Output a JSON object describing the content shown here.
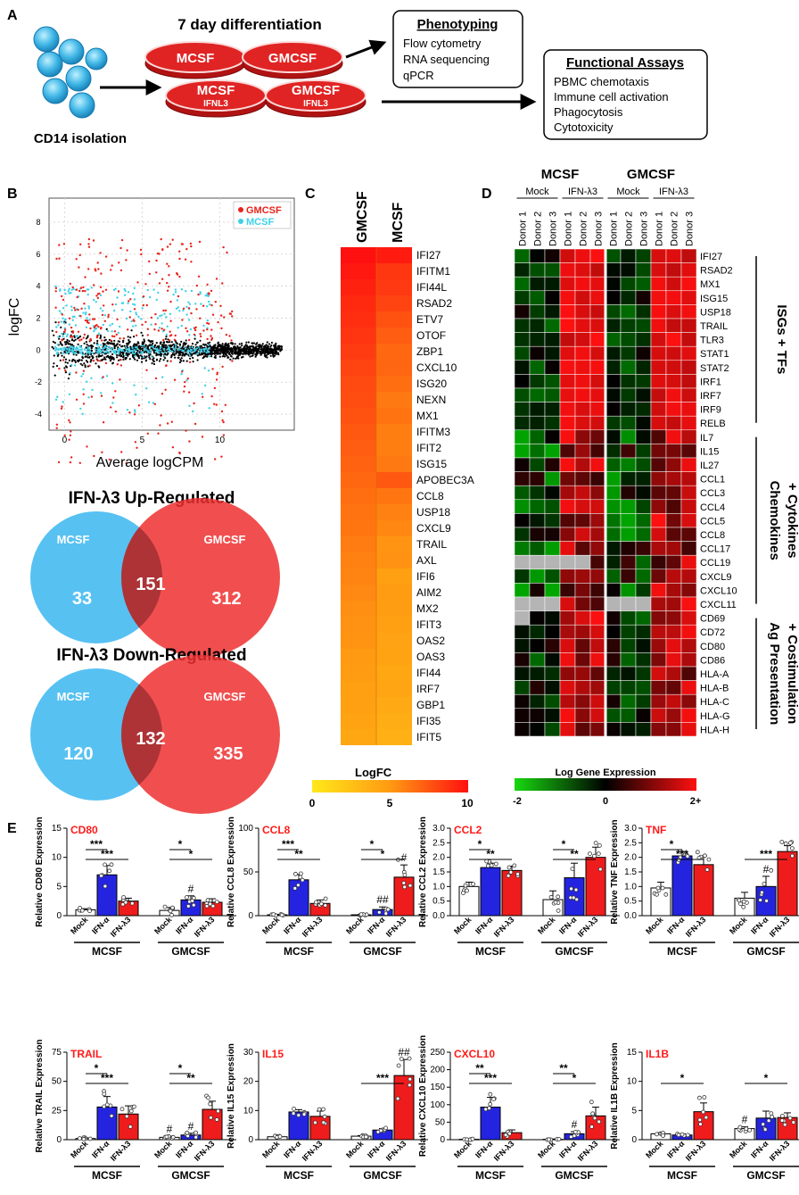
{
  "panels": {
    "A": {
      "letter": "A",
      "cells_label": "CD14 isolation",
      "differentiation_title": "7 day differentiation",
      "dishes": [
        {
          "label": "MCSF",
          "sub": ""
        },
        {
          "label": "GMCSF",
          "sub": ""
        },
        {
          "label": "MCSF",
          "sub": "IFNL3"
        },
        {
          "label": "GMCSF",
          "sub": "IFNL3"
        }
      ],
      "phenotyping": {
        "title": "Phenotyping",
        "items": [
          "Flow cytometry",
          "RNA sequencing",
          "qPCR"
        ]
      },
      "functional": {
        "title": "Functional Assays",
        "items": [
          "PBMC chemotaxis",
          "Immune cell activation",
          "Phagocytosis",
          "Cytotoxicity"
        ]
      }
    },
    "B": {
      "letter": "B",
      "xlabel": "Average logCPM",
      "ylabel": "logFC",
      "xticks": [
        "0",
        "5",
        "10"
      ],
      "yticks": [
        "8",
        "6",
        "4",
        "2",
        "0",
        "-2",
        "-4"
      ],
      "legend": [
        {
          "label": "GMCSF",
          "color": "#e8231b"
        },
        {
          "label": "MCSF",
          "color": "#3fd0e8"
        }
      ],
      "venn_up": {
        "title": "IFN-λ3 Up-Regulated",
        "left_label": "MCSF",
        "right_label": "GMCSF",
        "left_only": "33",
        "overlap": "151",
        "right_only": "312"
      },
      "venn_down": {
        "title": "IFN-λ3 Down-Regulated",
        "left_label": "MCSF",
        "right_label": "GMCSF",
        "left_only": "120",
        "overlap": "132",
        "right_only": "335"
      }
    },
    "C": {
      "letter": "C",
      "columns": [
        "GMCSF",
        "MCSF"
      ],
      "genes": [
        "IFI27",
        "IFITM1",
        "IFI44L",
        "RSAD2",
        "ETV7",
        "OTOF",
        "ZBP1",
        "CXCL10",
        "ISG20",
        "NEXN",
        "MX1",
        "IFITM3",
        "IFIT2",
        "ISG15",
        "APOBEC3A",
        "CCL8",
        "USP18",
        "CXCL9",
        "TRAIL",
        "AXL",
        "IFI6",
        "AIM2",
        "MX2",
        "IFIT3",
        "OAS2",
        "OAS3",
        "IFI44",
        "IRF7",
        "GBP1",
        "IFI35",
        "IFIT5"
      ],
      "gm_values": [
        10,
        9.7,
        9.4,
        9.1,
        8.9,
        8.7,
        8.4,
        8.1,
        7.9,
        7.8,
        7.6,
        7.4,
        7.2,
        7.0,
        6.8,
        6.6,
        6.4,
        6.3,
        6.1,
        5.9,
        5.8,
        5.6,
        5.4,
        5.3,
        5.2,
        5.0,
        4.9,
        4.7,
        4.6,
        4.4,
        4.2
      ],
      "m_values": [
        9.6,
        8.6,
        8.5,
        8.1,
        7.6,
        7.2,
        6.8,
        6.9,
        6.6,
        6.2,
        6.4,
        6.0,
        6.0,
        6.2,
        7.4,
        6.3,
        5.9,
        5.7,
        5.2,
        5.3,
        4.7,
        4.9,
        4.8,
        4.6,
        4.5,
        4.4,
        4.2,
        4.3,
        4.0,
        3.8,
        3.6
      ],
      "scale_title": "LogFC",
      "scale_ticks": [
        "0",
        "5",
        "10"
      ]
    },
    "D": {
      "letter": "D",
      "group_headers": [
        "MCSF",
        "GMCSF"
      ],
      "subgroups": [
        "Mock",
        "IFN-λ3",
        "Mock",
        "IFN-λ3"
      ],
      "donors": [
        "Donor 1",
        "Donor 2",
        "Donor 3",
        "Donor 1",
        "Donor 2",
        "Donor 3",
        "Donor 1",
        "Donor 2",
        "Donor 3",
        "Donor 1",
        "Donor 2",
        "Donor 3"
      ],
      "genes": [
        "IFI27",
        "RSAD2",
        "MX1",
        "ISG15",
        "USP18",
        "TRAIL",
        "TLR3",
        "STAT1",
        "STAT2",
        "IRF1",
        "IRF7",
        "IRF9",
        "RELB",
        "IL7",
        "IL15",
        "IL27",
        "CCL1",
        "CCL3",
        "CCL4",
        "CCL5",
        "CCL8",
        "CCL17",
        "CCL19",
        "CXCL9",
        "CXCL10",
        "CXCL11",
        "CD69",
        "CD72",
        "CD80",
        "CD86",
        "HLA-A",
        "HLA-B",
        "HLA-C",
        "HLA-G",
        "HLA-H"
      ],
      "categories": [
        "ISGs + TFs",
        "Chemokines + Cytokines",
        "Ag Presentation + Costimulation"
      ],
      "category_lines": [
        [
          "ISGs + TFs"
        ],
        [
          "Chemokines",
          "+ Cytokines"
        ],
        [
          "Ag Presentation",
          "+ Costimulation"
        ]
      ],
      "scale_title": "Log Gene Expression",
      "scale_ticks": [
        "-2",
        "0",
        "2+"
      ]
    },
    "E": {
      "letter": "E",
      "groups": [
        "MCSF",
        "GMCSF"
      ],
      "colors": {
        "mock": "#ffffff",
        "ifna": "#2424e0",
        "ifnl": "#ee1c1c"
      },
      "plots": [
        {
          "title": "CD80",
          "ylabel": "Relative CD80 Expression",
          "ymax": 15,
          "yticks": [
            "0",
            "5",
            "10",
            "15"
          ],
          "bars": [
            {
              "x": "Mock",
              "v": 1.0
            },
            {
              "x": "IFN-α",
              "v": 7.0
            },
            {
              "x": "IFN-λ3",
              "v": 2.5
            },
            {
              "x": "Mock",
              "v": 0.9
            },
            {
              "x": "IFN-α",
              "v": 2.7
            },
            {
              "x": "IFN-λ3",
              "v": 2.3
            }
          ],
          "errors": [
            0.2,
            1.6,
            0.5,
            0.5,
            0.7,
            0.6
          ],
          "sig": [
            {
              "a": 0,
              "b": 1,
              "label": "***",
              "lv": 0
            },
            {
              "a": 0,
              "b": 2,
              "label": "***",
              "lv": 1
            },
            {
              "a": 3,
              "b": 4,
              "label": "*",
              "lv": 0
            },
            {
              "a": 3,
              "b": 5,
              "label": "*",
              "lv": 1
            }
          ],
          "marks": [
            {
              "bar": 4,
              "label": "#"
            }
          ]
        },
        {
          "title": "CCL8",
          "ylabel": "Relative CCL8 Expression",
          "ymax": 100,
          "yticks": [
            "0",
            "50",
            "100"
          ],
          "bars": [
            {
              "x": "Mock",
              "v": 1.0
            },
            {
              "x": "IFN-α",
              "v": 41.0
            },
            {
              "x": "IFN-λ3",
              "v": 14.0
            },
            {
              "x": "Mock",
              "v": 1.0
            },
            {
              "x": "IFN-α",
              "v": 7.0
            },
            {
              "x": "IFN-λ3",
              "v": 44.0
            }
          ],
          "errors": [
            0.5,
            6,
            4,
            0.5,
            3,
            14
          ],
          "sig": [
            {
              "a": 0,
              "b": 1,
              "label": "***",
              "lv": 0
            },
            {
              "a": 0,
              "b": 2,
              "label": "**",
              "lv": 1
            },
            {
              "a": 3,
              "b": 4,
              "label": "*",
              "lv": 0
            },
            {
              "a": 3,
              "b": 5,
              "label": "*",
              "lv": 1
            }
          ],
          "marks": [
            {
              "bar": 4,
              "label": "##"
            },
            {
              "bar": 5,
              "label": "#"
            }
          ]
        },
        {
          "title": "CCL2",
          "ylabel": "Relative CCL2 Expression",
          "ymax": 3,
          "yticks": [
            "0.0",
            "0.5",
            "1.0",
            "1.5",
            "2.0",
            "2.5",
            "3.0"
          ],
          "bars": [
            {
              "x": "Mock",
              "v": 1.0
            },
            {
              "x": "IFN-α",
              "v": 1.65
            },
            {
              "x": "IFN-λ3",
              "v": 1.55
            },
            {
              "x": "Mock",
              "v": 0.55
            },
            {
              "x": "IFN-α",
              "v": 1.3
            },
            {
              "x": "IFN-λ3",
              "v": 2.0
            }
          ],
          "errors": [
            0.15,
            0.15,
            0.15,
            0.3,
            0.5,
            0.35
          ],
          "sig": [
            {
              "a": 0,
              "b": 1,
              "label": "*",
              "lv": 0
            },
            {
              "a": 0,
              "b": 2,
              "label": "**",
              "lv": 1
            },
            {
              "a": 3,
              "b": 4,
              "label": "*",
              "lv": 0
            },
            {
              "a": 3,
              "b": 5,
              "label": "**",
              "lv": 1
            }
          ],
          "marks": []
        },
        {
          "title": "TNF",
          "ylabel": "Relative TNF Expression",
          "ymax": 3,
          "yticks": [
            "0.0",
            "0.5",
            "1.0",
            "1.5",
            "2.0",
            "2.5",
            "3.0"
          ],
          "bars": [
            {
              "x": "Mock",
              "v": 0.95
            },
            {
              "x": "IFN-α",
              "v": 2.05
            },
            {
              "x": "IFN-λ3",
              "v": 1.75
            },
            {
              "x": "Mock",
              "v": 0.6
            },
            {
              "x": "IFN-α",
              "v": 1.0
            },
            {
              "x": "IFN-λ3",
              "v": 2.2
            }
          ],
          "errors": [
            0.2,
            0.15,
            0.3,
            0.2,
            0.35,
            0.2
          ],
          "sig": [
            {
              "a": 0,
              "b": 1,
              "label": "*",
              "lv": 0
            },
            {
              "a": 0,
              "b": 2,
              "label": "***",
              "lv": 1
            },
            {
              "a": 3,
              "b": 5,
              "label": "***",
              "lv": 1
            }
          ],
          "marks": [
            {
              "bar": 4,
              "label": "#"
            }
          ]
        },
        {
          "title": "TRAIL",
          "ylabel": "Relative TRAIL Expression",
          "ymax": 75,
          "yticks": [
            "0",
            "25",
            "50",
            "75"
          ],
          "bars": [
            {
              "x": "Mock",
              "v": 1.0
            },
            {
              "x": "IFN-α",
              "v": 28.0
            },
            {
              "x": "IFN-λ3",
              "v": 22.0
            },
            {
              "x": "Mock",
              "v": 2.0
            },
            {
              "x": "IFN-α",
              "v": 4.0
            },
            {
              "x": "IFN-λ3",
              "v": 26.0
            }
          ],
          "errors": [
            0.5,
            9,
            7,
            1,
            1.5,
            7
          ],
          "sig": [
            {
              "a": 0,
              "b": 1,
              "label": "*",
              "lv": 0
            },
            {
              "a": 0,
              "b": 2,
              "label": "***",
              "lv": 1
            },
            {
              "a": 3,
              "b": 4,
              "label": "*",
              "lv": 0
            },
            {
              "a": 3,
              "b": 5,
              "label": "**",
              "lv": 1
            }
          ],
          "marks": [
            {
              "bar": 3,
              "label": "#"
            },
            {
              "bar": 4,
              "label": "#"
            }
          ]
        },
        {
          "title": "IL15",
          "ylabel": "Relative IL15 Expression",
          "ymax": 30,
          "yticks": [
            "0",
            "10",
            "20",
            "30"
          ],
          "bars": [
            {
              "x": "Mock",
              "v": 1.0
            },
            {
              "x": "IFN-α",
              "v": 9.5
            },
            {
              "x": "IFN-λ3",
              "v": 8.0
            },
            {
              "x": "Mock",
              "v": 1.2
            },
            {
              "x": "IFN-α",
              "v": 3.3
            },
            {
              "x": "IFN-λ3",
              "v": 22.0
            }
          ],
          "errors": [
            0.2,
            0.8,
            1.8,
            0.2,
            0.5,
            5.5
          ],
          "sig": [
            {
              "a": 3,
              "b": 5,
              "label": "***",
              "lv": 1
            }
          ],
          "marks": [
            {
              "bar": 5,
              "label": "##"
            }
          ]
        },
        {
          "title": "CXCL10",
          "ylabel": "Relative CXCL10 Expression",
          "ymax": 250,
          "yticks": [
            "0",
            "50",
            "100",
            "150",
            "200",
            "250"
          ],
          "bars": [
            {
              "x": "Mock",
              "v": 1
            },
            {
              "x": "IFN-α",
              "v": 93
            },
            {
              "x": "IFN-λ3",
              "v": 20
            },
            {
              "x": "Mock",
              "v": 1
            },
            {
              "x": "IFN-α",
              "v": 17
            },
            {
              "x": "IFN-λ3",
              "v": 68
            }
          ],
          "errors": [
            1,
            28,
            8,
            1,
            6,
            25
          ],
          "sig": [
            {
              "a": 0,
              "b": 1,
              "label": "**",
              "lv": 0
            },
            {
              "a": 0,
              "b": 2,
              "label": "***",
              "lv": 1
            },
            {
              "a": 3,
              "b": 4,
              "label": "**",
              "lv": 0
            },
            {
              "a": 3,
              "b": 5,
              "label": "*",
              "lv": 1
            }
          ],
          "marks": [
            {
              "bar": 4,
              "label": "#"
            }
          ]
        },
        {
          "title": "IL1B",
          "ylabel": "Relative IL1B Expression",
          "ymax": 15,
          "yticks": [
            "0",
            "5",
            "10",
            "15"
          ],
          "bars": [
            {
              "x": "Mock",
              "v": 1.0
            },
            {
              "x": "IFN-α",
              "v": 0.8
            },
            {
              "x": "IFN-λ3",
              "v": 4.8
            },
            {
              "x": "Mock",
              "v": 1.9
            },
            {
              "x": "IFN-α",
              "v": 3.7
            },
            {
              "x": "IFN-λ3",
              "v": 3.8
            }
          ],
          "errors": [
            0.2,
            0.2,
            1.5,
            0.3,
            1.2,
            0.8
          ],
          "sig": [
            {
              "a": 0,
              "b": 2,
              "label": "*",
              "lv": 1
            },
            {
              "a": 3,
              "b": 5,
              "label": "*",
              "lv": 1
            }
          ],
          "marks": [
            {
              "bar": 3,
              "label": "#"
            }
          ]
        }
      ]
    }
  }
}
